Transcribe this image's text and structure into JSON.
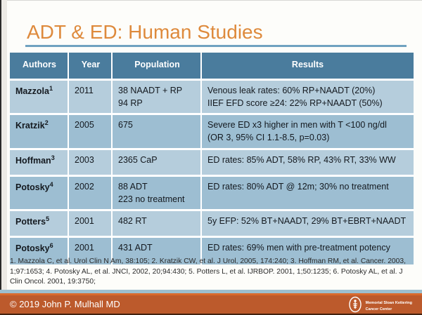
{
  "slide": {
    "title": "ADT & ED: Human Studies",
    "citations": "1. Mazzola C, et al. Urol Clin N Am, 38:105; 2. Kratzik CW, et al. J Urol, 2005, 174:240; 3. Hoffman RM, et al. Cancer. 2003, 1;97:1653; 4. Potosky AL, et al. JNCI, 2002, 20;94:430; 5. Potters L, et al. IJRBOP. 2001, 1;50:1235; 6. Potosky AL, et al. J Clin Oncol. 2001, 19:3750;",
    "footer": {
      "copyright": "© 2019 John P. Mulhall MD",
      "logo_line1": "Memorial Sloan Kettering",
      "logo_line2": "Cancer Center"
    }
  },
  "table": {
    "headers": [
      "Authors",
      "Year",
      "Population",
      "Results"
    ],
    "rows": [
      {
        "author": "Mazzola",
        "sup": "1",
        "year": "2011",
        "population": [
          "38 NAADT + RP",
          "94 RP"
        ],
        "results": [
          "Venous leak rates: 60% RP+NAADT (20%)",
          "IIEF EFD score ≥24: 22% RP+NAADT (50%)"
        ]
      },
      {
        "author": "Kratzik",
        "sup": "2",
        "year": "2005",
        "population": [
          "675"
        ],
        "results": [
          "Severe ED x3 higher in men with T <100 ng/dl",
          "(OR 3, 95% CI 1.1-8.5, p=0.03)"
        ]
      },
      {
        "author": "Hoffman",
        "sup": "3",
        "year": "2003",
        "population": [
          "2365 CaP"
        ],
        "results": [
          "ED rates: 85% ADT, 58% RP, 43% RT, 33% WW"
        ]
      },
      {
        "author": "Potosky",
        "sup": "4",
        "year": "2002",
        "population": [
          "88 ADT",
          "223 no treatment"
        ],
        "results": [
          "ED rates: 80% ADT @ 12m; 30% no treatment"
        ]
      },
      {
        "author": "Potters",
        "sup": "5",
        "year": "2001",
        "population": [
          "482 RT"
        ],
        "results": [
          "5y EFP: 52% BT+NAADT, 29% BT+EBRT+NAADT"
        ]
      },
      {
        "author": "Potosky",
        "sup": "6",
        "year": "2001",
        "population": [
          "431 ADT"
        ],
        "results": [
          "ED rates: 69% men with pre-treatment potency"
        ]
      }
    ]
  },
  "colors": {
    "title_orange": "#de8a3c",
    "header_blue": "#4a7c9d",
    "row_light": "#b5cddc",
    "row_dark": "#9dbed2",
    "underline_blue": "#70a2c0",
    "footer_orange": "#bc5a2c",
    "footer_stripe_blue": "#9dbfcf"
  }
}
